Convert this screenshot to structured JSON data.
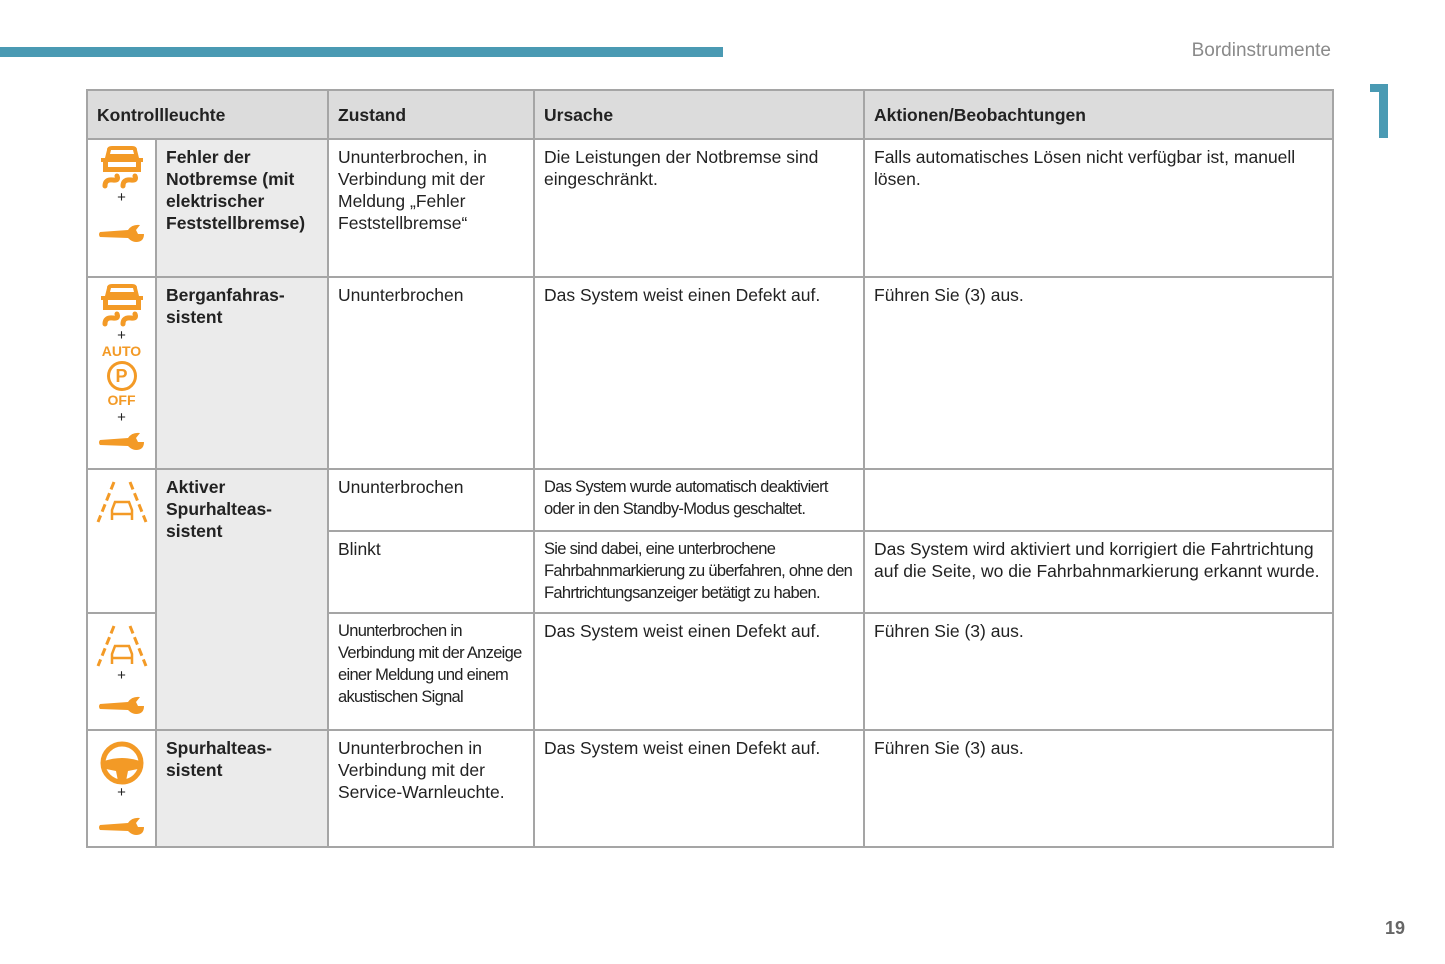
{
  "header": {
    "section": "Bordinstrumente",
    "chapter": "1"
  },
  "page_number": "19",
  "colors": {
    "accent": "#4a9ab3",
    "warning": "#f39a26"
  },
  "table": {
    "columns": [
      "Kontrollleuchte",
      "Zustand",
      "Ursache",
      "Aktionen/Beobachtungen"
    ],
    "plus": "+",
    "auto_label": "AUTO",
    "off_label": "OFF",
    "p_label": "P",
    "rows": [
      {
        "name": "Fehler der Notbremse (mit elektrischer Feststellbremse)",
        "icons": [
          "car-skid-icon",
          "wrench-icon"
        ],
        "state": "Ununterbrochen, in Verbindung mit der Meldung „Fehler Feststellbremse“",
        "cause": "Die Leistungen der Notbremse sind eingeschränkt.",
        "action": "Falls automatisches Lösen nicht verfügbar ist, manuell lösen."
      },
      {
        "name": "Berganfahras-sistent",
        "icons": [
          "car-skid-icon",
          "auto-parking-brake-off-icon",
          "wrench-icon"
        ],
        "state": "Ununterbrochen",
        "cause": "Das System weist einen Defekt auf.",
        "action": "Führen Sie (3) aus."
      },
      {
        "name": "Aktiver Spurhalteas-sistent",
        "icons": [
          "lane-assist-icon"
        ],
        "state": "Ununterbrochen",
        "cause": "Das System wurde automatisch deaktiviert oder in den Standby-Modus geschaltet.",
        "action": ""
      },
      {
        "state": "Blinkt",
        "cause": "Sie sind dabei, eine unterbrochene Fahrbahnmarkierung zu überfahren, ohne den Fahrtrichtungsanzeiger betätigt zu haben.",
        "action": "Das System wird aktiviert und korrigiert die Fahrtrichtung auf die Seite, wo die Fahrbahnmarkierung erkannt wurde."
      },
      {
        "icons": [
          "lane-assist-icon",
          "wrench-icon"
        ],
        "state": "Ununterbrochen in Verbindung mit der Anzeige einer Meldung und einem akustischen Signal",
        "cause": "Das System weist einen Defekt auf.",
        "action": "Führen Sie (3) aus."
      },
      {
        "name": "Spurhalteas-sistent",
        "icons": [
          "steering-wheel-icon",
          "wrench-icon"
        ],
        "state": "Ununterbrochen in Verbindung mit der Service-Warnleuchte.",
        "cause": "Das System weist einen Defekt auf.",
        "action": "Führen Sie (3) aus."
      }
    ]
  }
}
